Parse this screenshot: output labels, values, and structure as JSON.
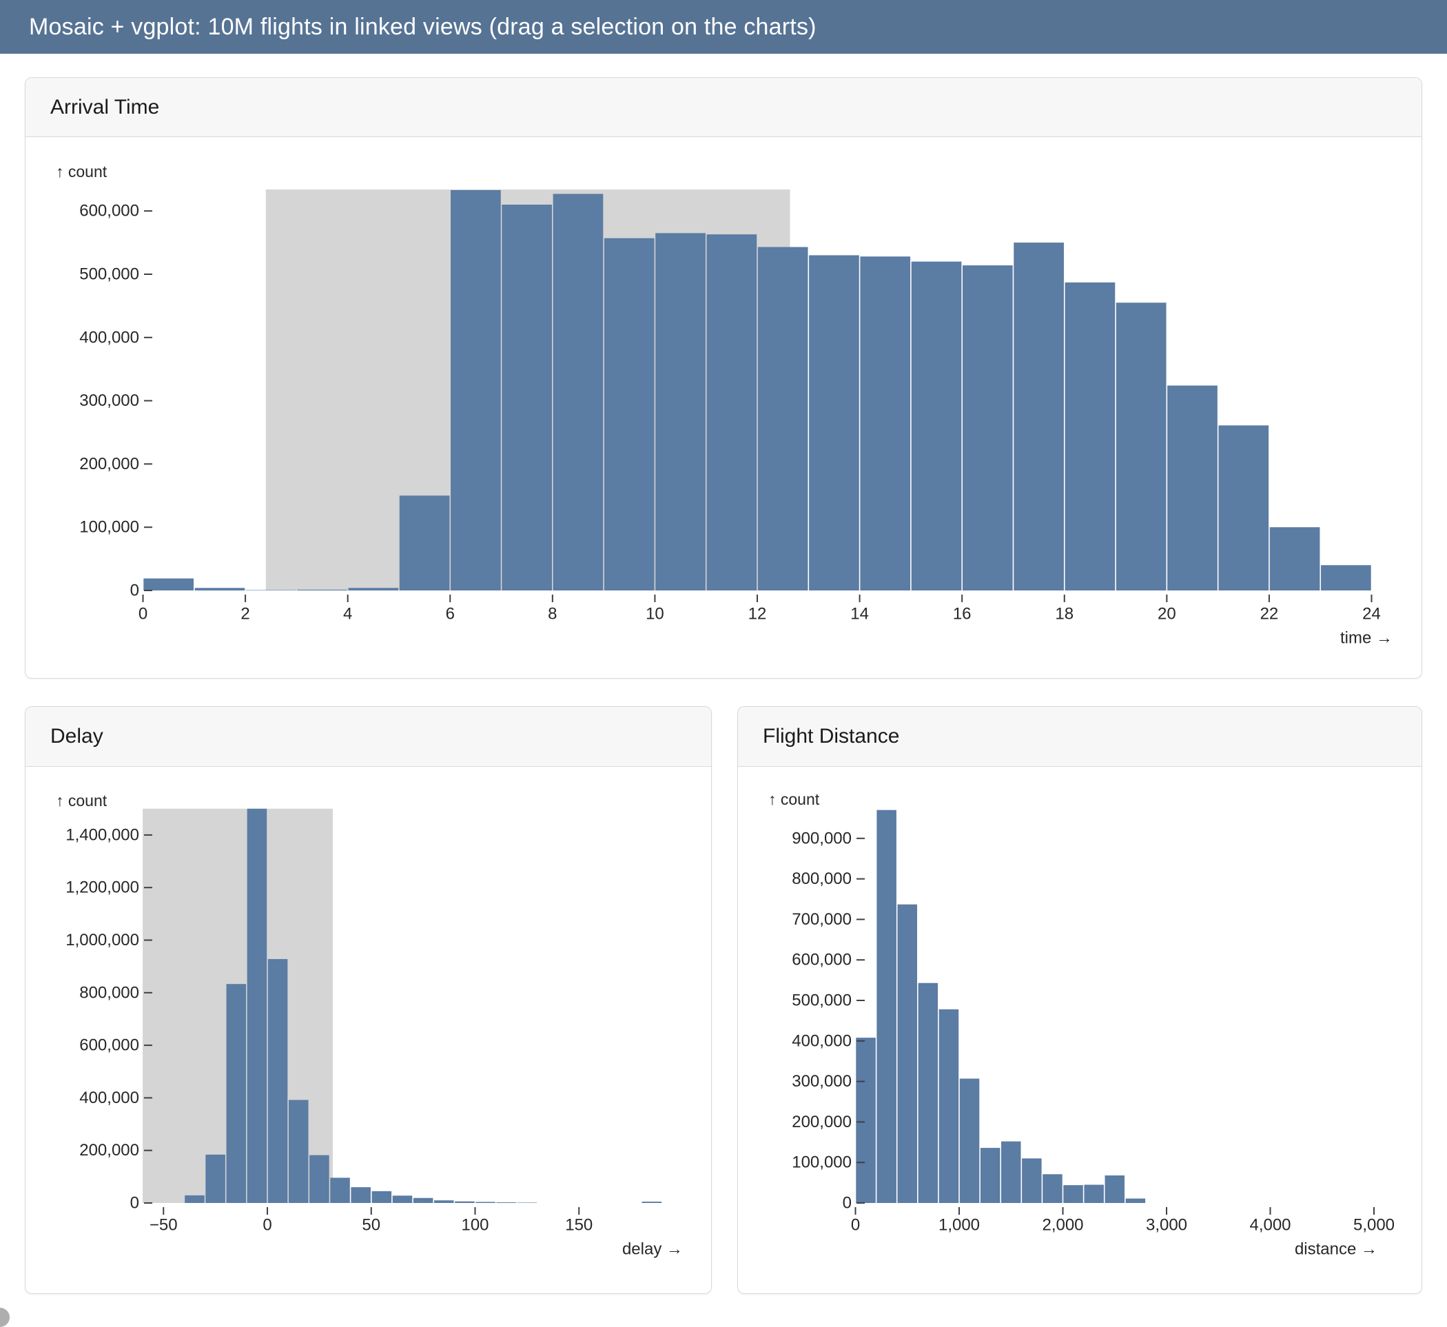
{
  "header": {
    "title": "Mosaic + vgplot: 10M flights in linked views (drag a selection on the charts)"
  },
  "colors": {
    "titlebar_bg": "#567394",
    "bar": "#5b7ca3",
    "selection": "#d5d5d5",
    "card_header_bg": "#f7f7f7",
    "card_border": "#d9d9d9",
    "axis_text": "#27272a",
    "tick_line": "#3f3f46"
  },
  "chart_data": [
    {
      "id": "arrival-time",
      "type": "bar",
      "title": "Arrival Time",
      "ylabel": "↑ count",
      "xlabel": "time →",
      "grid": false,
      "bin_width": 1,
      "xlim": [
        0,
        24
      ],
      "ylim": [
        0,
        650000
      ],
      "x_ticks": [
        0,
        2,
        4,
        6,
        8,
        10,
        12,
        14,
        16,
        18,
        20,
        22,
        24
      ],
      "y_ticks": [
        0,
        100000,
        200000,
        300000,
        400000,
        500000,
        600000
      ],
      "selection": {
        "x1": 2.4,
        "x2": 12.64
      },
      "bins": [
        {
          "x": 0,
          "count": 19000
        },
        {
          "x": 1,
          "count": 4000
        },
        {
          "x": 2,
          "count": 600
        },
        {
          "x": 3,
          "count": 1200
        },
        {
          "x": 4,
          "count": 4000
        },
        {
          "x": 5,
          "count": 150000
        },
        {
          "x": 6,
          "count": 633000
        },
        {
          "x": 7,
          "count": 610000
        },
        {
          "x": 8,
          "count": 627000
        },
        {
          "x": 9,
          "count": 557000
        },
        {
          "x": 10,
          "count": 565000
        },
        {
          "x": 11,
          "count": 563000
        },
        {
          "x": 12,
          "count": 543000
        },
        {
          "x": 13,
          "count": 530000
        },
        {
          "x": 14,
          "count": 528000
        },
        {
          "x": 15,
          "count": 520000
        },
        {
          "x": 16,
          "count": 514000
        },
        {
          "x": 17,
          "count": 550000
        },
        {
          "x": 18,
          "count": 487000
        },
        {
          "x": 19,
          "count": 455000
        },
        {
          "x": 20,
          "count": 324000
        },
        {
          "x": 21,
          "count": 261000
        },
        {
          "x": 22,
          "count": 100000
        },
        {
          "x": 23,
          "count": 40000
        }
      ]
    },
    {
      "id": "delay",
      "type": "bar",
      "title": "Delay",
      "ylabel": "↑ count",
      "xlabel": "delay →",
      "grid": false,
      "bin_width": 10,
      "xlim": [
        -60,
        200
      ],
      "ylim": [
        0,
        1500000
      ],
      "x_ticks": [
        -50,
        0,
        50,
        100,
        150
      ],
      "y_ticks": [
        0,
        200000,
        400000,
        600000,
        800000,
        1000000,
        1200000,
        1400000
      ],
      "selection": {
        "x1": -60,
        "x2": 31.5
      },
      "bins": [
        {
          "x": -40,
          "count": 29000
        },
        {
          "x": -30,
          "count": 184000
        },
        {
          "x": -20,
          "count": 833000
        },
        {
          "x": -10,
          "count": 1500000
        },
        {
          "x": 0,
          "count": 928000
        },
        {
          "x": 10,
          "count": 392000
        },
        {
          "x": 20,
          "count": 182000
        },
        {
          "x": 30,
          "count": 96000
        },
        {
          "x": 40,
          "count": 60000
        },
        {
          "x": 50,
          "count": 45000
        },
        {
          "x": 60,
          "count": 28000
        },
        {
          "x": 70,
          "count": 19000
        },
        {
          "x": 80,
          "count": 10000
        },
        {
          "x": 90,
          "count": 6000
        },
        {
          "x": 100,
          "count": 4000
        },
        {
          "x": 110,
          "count": 2500
        },
        {
          "x": 120,
          "count": 1500
        },
        {
          "x": 180,
          "count": 5000
        }
      ]
    },
    {
      "id": "flight-distance",
      "type": "bar",
      "title": "Flight Distance",
      "ylabel": "↑ count",
      "xlabel": "distance →",
      "grid": false,
      "bin_width": 200,
      "xlim": [
        0,
        5000
      ],
      "ylim": [
        0,
        970000
      ],
      "x_ticks": [
        0,
        1000,
        2000,
        3000,
        4000,
        5000
      ],
      "y_ticks": [
        0,
        100000,
        200000,
        300000,
        400000,
        500000,
        600000,
        700000,
        800000,
        900000
      ],
      "selection": null,
      "bins": [
        {
          "x": 0,
          "count": 408000
        },
        {
          "x": 200,
          "count": 970000
        },
        {
          "x": 400,
          "count": 737000
        },
        {
          "x": 600,
          "count": 543000
        },
        {
          "x": 800,
          "count": 478000
        },
        {
          "x": 1000,
          "count": 307000
        },
        {
          "x": 1200,
          "count": 136000
        },
        {
          "x": 1400,
          "count": 152000
        },
        {
          "x": 1600,
          "count": 110000
        },
        {
          "x": 1800,
          "count": 71000
        },
        {
          "x": 2000,
          "count": 44000
        },
        {
          "x": 2200,
          "count": 45000
        },
        {
          "x": 2400,
          "count": 68000
        },
        {
          "x": 2600,
          "count": 11000
        }
      ]
    }
  ]
}
